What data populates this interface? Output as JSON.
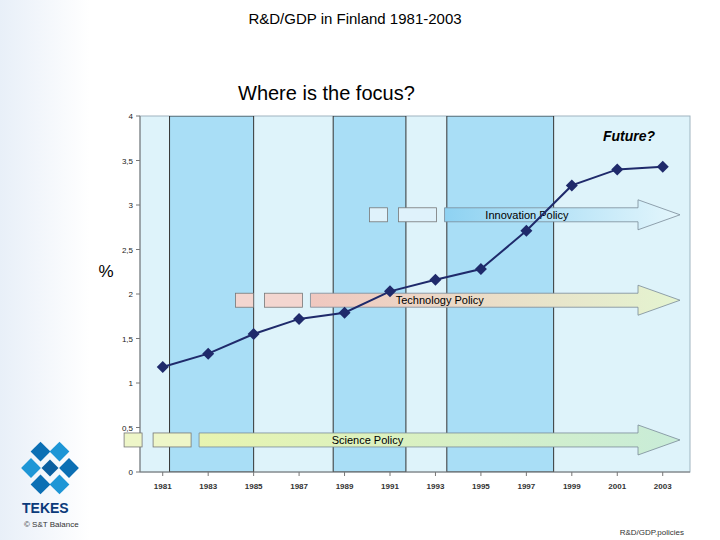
{
  "chart_data": {
    "type": "line",
    "title": "R&D/GDP in Finland 1981-2003",
    "subtitle": "Where is the focus?",
    "y_label": "%",
    "x": [
      1981,
      1983,
      1985,
      1987,
      1989,
      1991,
      1993,
      1995,
      1997,
      1999,
      2001,
      2003
    ],
    "values": [
      1.18,
      1.33,
      1.55,
      1.72,
      1.79,
      2.03,
      2.16,
      2.28,
      2.71,
      3.22,
      3.4,
      3.43
    ],
    "color": "#1f2a6b",
    "marker": "diamond",
    "xlim": [
      1980,
      2004.2
    ],
    "xticks": [
      1981,
      1983,
      1985,
      1987,
      1989,
      1991,
      1993,
      1995,
      1997,
      1999,
      2001,
      2003
    ],
    "ylim": [
      0,
      4
    ],
    "yticks": [
      0,
      {
        "value": 0.5,
        "label": "0,5"
      },
      1,
      {
        "value": 1.5,
        "label": "1,5"
      },
      2,
      {
        "value": 2.5,
        "label": "2,5"
      },
      3,
      {
        "value": 3.5,
        "label": "3,5"
      },
      4
    ],
    "grid": false,
    "bands": [
      {
        "start": 1981.3,
        "end": 1985
      },
      {
        "start": 1988.5,
        "end": 1991.7
      },
      {
        "start": 1993.5,
        "end": 1998.2
      }
    ],
    "annotation": "Future?",
    "policies": [
      {
        "text": "Innovation Policy",
        "start": 1993.4,
        "level": 2.89
      },
      {
        "text": "Technology Policy",
        "start": 1987.5,
        "level": 1.93
      },
      {
        "text": "Science Policy",
        "start": 1982.6,
        "level": 0.36
      }
    ],
    "logo": "TEKES",
    "source": "© S&T Balance",
    "footer": "R&D/GDP.policies"
  }
}
